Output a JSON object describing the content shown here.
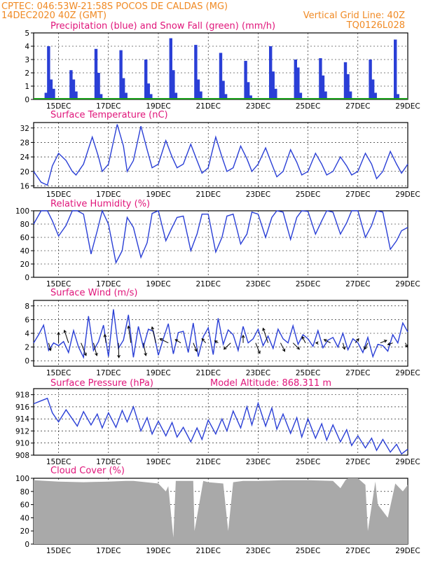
{
  "header": {
    "line1": "CPTEC:   046:53W-21:58S   POCOS DE CALDAS (MG)",
    "line2": "14DEC2020 40Z (GMT)",
    "right1": "Vertical Grid Line: 40Z",
    "right2": "TQ0126L028"
  },
  "x_labels": [
    "15DEC",
    "17DEC",
    "19DEC",
    "21DEC",
    "23DEC",
    "25DEC",
    "27DEC",
    "29DEC"
  ],
  "colors": {
    "header": "#f08a24",
    "title": "#e0157a",
    "line": "#2a3fd6",
    "bar": "#2a3fd6",
    "snow": "#1a9e1a",
    "cloud": "#a9a9a9"
  },
  "chart_data": [
    {
      "type": "bar",
      "title": "Precipitation (blue) and Snow Fall (green) (mm/h)",
      "ylim": [
        0,
        5
      ],
      "yticks": [
        "0",
        "1",
        "2",
        "3",
        "4",
        "5"
      ],
      "x_range_days": [
        14.0,
        29.0
      ],
      "days": [
        14.5,
        14.6,
        14.7,
        14.8,
        15.5,
        15.6,
        15.7,
        16.5,
        16.6,
        16.7,
        17.5,
        17.6,
        17.7,
        18.5,
        18.6,
        18.7,
        19.5,
        19.6,
        19.7,
        20.5,
        20.6,
        20.7,
        21.5,
        21.6,
        21.7,
        22.5,
        22.6,
        22.7,
        23.5,
        23.6,
        23.7,
        24.5,
        24.6,
        24.7,
        25.5,
        25.6,
        25.7,
        26.5,
        26.6,
        26.7,
        27.5,
        27.6,
        27.7,
        28.5,
        28.6
      ],
      "series": [
        {
          "name": "Precipitation",
          "values": [
            0.5,
            4.0,
            1.5,
            0.8,
            2.2,
            1.5,
            0.6,
            3.8,
            2.0,
            0.4,
            3.7,
            1.6,
            0.5,
            3.0,
            1.2,
            0.4,
            4.6,
            2.2,
            0.5,
            4.1,
            1.5,
            0.6,
            3.5,
            1.4,
            0.4,
            2.9,
            1.3,
            0.3,
            4.0,
            2.1,
            0.8,
            3.0,
            2.4,
            0.5,
            3.1,
            1.8,
            0.6,
            2.8,
            1.9,
            0.6,
            3.0,
            1.5,
            0.5,
            4.5,
            0.4
          ]
        }
      ]
    },
    {
      "type": "line",
      "title": "Surface Temperature (nC)",
      "ylim": [
        15.5,
        33.5
      ],
      "yticks": [
        "16",
        "20",
        "24",
        "28",
        "32"
      ],
      "x_range_days": [
        14.0,
        29.0
      ],
      "x": [
        14.0,
        14.3,
        14.55,
        14.75,
        15.0,
        15.3,
        15.55,
        15.7,
        16.0,
        16.35,
        16.6,
        16.75,
        17.0,
        17.35,
        17.6,
        17.75,
        18.0,
        18.3,
        18.55,
        18.75,
        19.0,
        19.3,
        19.55,
        19.75,
        20.0,
        20.3,
        20.55,
        20.75,
        21.0,
        21.3,
        21.55,
        21.75,
        22.0,
        22.3,
        22.55,
        22.75,
        23.0,
        23.3,
        23.55,
        23.75,
        24.0,
        24.3,
        24.55,
        24.75,
        25.0,
        25.3,
        25.55,
        25.75,
        26.0,
        26.3,
        26.55,
        26.75,
        27.0,
        27.3,
        27.55,
        27.75,
        28.0,
        28.3,
        28.55,
        28.75,
        29.0
      ],
      "series": [
        {
          "name": "Temperature",
          "values": [
            20.0,
            17.0,
            16.2,
            21.5,
            25.0,
            23.0,
            20.0,
            19.0,
            22.0,
            29.5,
            24.0,
            20.0,
            22.0,
            33.0,
            27.0,
            20.0,
            23.0,
            32.5,
            26.0,
            21.0,
            22.0,
            28.5,
            24.0,
            21.0,
            22.0,
            27.5,
            23.0,
            19.5,
            21.0,
            29.5,
            24.0,
            20.0,
            21.0,
            27.0,
            23.5,
            20.0,
            22.0,
            26.5,
            22.0,
            18.5,
            20.0,
            26.0,
            22.5,
            19.0,
            20.0,
            25.0,
            22.0,
            19.0,
            20.0,
            24.0,
            21.5,
            19.0,
            20.0,
            25.0,
            22.0,
            18.0,
            20.0,
            25.5,
            22.0,
            19.5,
            22.0
          ]
        }
      ]
    },
    {
      "type": "line",
      "title": "Relative Humidity (%)",
      "ylim": [
        0,
        100
      ],
      "yticks": [
        "0",
        "20",
        "40",
        "60",
        "80",
        "100"
      ],
      "x_range_days": [
        14.0,
        29.0
      ],
      "x": [
        14.0,
        14.3,
        14.55,
        14.75,
        15.0,
        15.3,
        15.55,
        15.75,
        16.0,
        16.3,
        16.55,
        16.75,
        17.0,
        17.3,
        17.55,
        17.75,
        18.0,
        18.3,
        18.55,
        18.75,
        19.0,
        19.3,
        19.55,
        19.75,
        20.0,
        20.3,
        20.55,
        20.75,
        21.0,
        21.3,
        21.55,
        21.75,
        22.0,
        22.3,
        22.55,
        22.75,
        23.0,
        23.3,
        23.55,
        23.75,
        24.0,
        24.3,
        24.55,
        24.75,
        25.0,
        25.3,
        25.55,
        25.75,
        26.0,
        26.3,
        26.55,
        26.75,
        27.0,
        27.3,
        27.55,
        27.75,
        28.0,
        28.3,
        28.55,
        28.75,
        29.0
      ],
      "series": [
        {
          "name": "Relative humidity",
          "values": [
            80.0,
            100.0,
            100.0,
            85.0,
            62.0,
            78.0,
            100.0,
            100.0,
            95.0,
            35.0,
            70.0,
            100.0,
            80.0,
            22.0,
            40.0,
            90.0,
            75.0,
            30.0,
            52.0,
            96.0,
            100.0,
            55.0,
            75.0,
            90.0,
            92.0,
            40.0,
            65.0,
            95.0,
            95.0,
            38.0,
            60.0,
            92.0,
            95.0,
            50.0,
            65.0,
            98.0,
            95.0,
            60.0,
            90.0,
            100.0,
            98.0,
            57.0,
            90.0,
            100.0,
            99.0,
            65.0,
            85.0,
            100.0,
            98.0,
            65.0,
            82.0,
            100.0,
            100.0,
            60.0,
            78.0,
            100.0,
            98.0,
            42.0,
            55.0,
            70.0,
            75.0
          ]
        }
      ]
    },
    {
      "type": "line",
      "title": "Surface Wind (m/s)",
      "ylim": [
        -0.8,
        8.8
      ],
      "yticks": [
        "0",
        "2",
        "4",
        "6",
        "8"
      ],
      "x_range_days": [
        14.0,
        29.0
      ],
      "x": [
        14.0,
        14.2,
        14.4,
        14.6,
        14.8,
        15.0,
        15.2,
        15.4,
        15.6,
        15.8,
        16.0,
        16.2,
        16.4,
        16.6,
        16.8,
        17.0,
        17.2,
        17.4,
        17.6,
        17.8,
        18.0,
        18.2,
        18.4,
        18.6,
        18.8,
        19.0,
        19.2,
        19.4,
        19.6,
        19.8,
        20.0,
        20.2,
        20.4,
        20.6,
        20.8,
        21.0,
        21.2,
        21.4,
        21.6,
        21.8,
        22.0,
        22.2,
        22.4,
        22.6,
        22.8,
        23.0,
        23.2,
        23.4,
        23.6,
        23.8,
        24.0,
        24.2,
        24.4,
        24.6,
        24.8,
        25.0,
        25.2,
        25.4,
        25.6,
        25.8,
        26.0,
        26.2,
        26.4,
        26.6,
        26.8,
        27.0,
        27.2,
        27.4,
        27.6,
        27.8,
        28.0,
        28.2,
        28.4,
        28.6,
        28.8,
        29.0
      ],
      "series": [
        {
          "name": "Wind speed",
          "values": [
            2.6,
            3.8,
            5.2,
            1.5,
            2.6,
            2.2,
            2.8,
            1.2,
            4.4,
            2.0,
            0.5,
            6.5,
            1.5,
            2.8,
            5.2,
            0.6,
            7.5,
            1.8,
            3.0,
            6.7,
            0.5,
            5.0,
            2.0,
            4.6,
            4.3,
            0.8,
            3.2,
            5.4,
            1.0,
            4.1,
            4.3,
            1.2,
            5.5,
            0.6,
            3.5,
            4.8,
            0.9,
            6.2,
            2.4,
            4.5,
            3.8,
            1.5,
            5.0,
            2.6,
            3.2,
            4.6,
            2.2,
            3.6,
            1.8,
            4.6,
            3.2,
            2.6,
            5.1,
            2.4,
            3.8,
            3.2,
            2.1,
            4.4,
            1.9,
            3.0,
            3.4,
            2.0,
            4.0,
            1.6,
            3.2,
            2.6,
            1.2,
            3.4,
            0.6,
            2.4,
            2.2,
            1.4,
            3.8,
            2.6,
            5.5,
            4.2
          ]
        }
      ],
      "arrows": {
        "x": [
          14.6,
          15.0,
          15.4,
          15.9,
          16.4,
          16.9,
          17.4,
          17.9,
          18.4,
          18.9,
          19.4,
          19.9,
          20.4,
          20.9,
          21.4,
          21.9,
          22.4,
          22.9,
          23.4,
          23.9,
          24.4,
          24.9,
          25.4,
          25.9,
          26.4,
          26.9,
          27.4,
          27.9,
          28.4,
          28.9
        ],
        "u": [
          0.5,
          0.0,
          -1.0,
          1.2,
          0.8,
          -0.3,
          0.1,
          -0.6,
          0.6,
          -0.9,
          -2.0,
          -1.3,
          0.8,
          -0.9,
          -0.8,
          -1.6,
          0.0,
          1.0,
          -1.2,
          1.0,
          1.5,
          -0.8,
          -0.5,
          -1.5,
          0.4,
          0.8,
          -0.8,
          1.5,
          -1.2,
          0.5
        ],
        "v": [
          -1.8,
          2.5,
          3.0,
          -3.0,
          -3.0,
          2.0,
          -3.5,
          4.0,
          -3.0,
          3.8,
          1.0,
          0.8,
          -2.0,
          1.0,
          0.5,
          -1.5,
          1.8,
          -2.5,
          3.5,
          -2.0,
          -1.5,
          1.5,
          0.0,
          0.8,
          -1.5,
          1.0,
          -1.5,
          0.6,
          -0.4,
          -1.0
        ]
      }
    },
    {
      "type": "line",
      "title": "Surface Pressure (hPa)",
      "annotation": "Model Altitude: 868.311 m",
      "ylim": [
        908,
        919
      ],
      "yticks": [
        "908",
        "910",
        "912",
        "914",
        "916",
        "918"
      ],
      "x_range_days": [
        14.0,
        29.0
      ],
      "x": [
        14.0,
        14.3,
        14.55,
        14.75,
        15.0,
        15.3,
        15.55,
        15.75,
        16.0,
        16.3,
        16.55,
        16.75,
        17.0,
        17.3,
        17.55,
        17.75,
        18.0,
        18.3,
        18.55,
        18.75,
        19.0,
        19.3,
        19.55,
        19.75,
        20.0,
        20.3,
        20.55,
        20.75,
        21.0,
        21.3,
        21.55,
        21.75,
        22.0,
        22.3,
        22.55,
        22.75,
        23.0,
        23.3,
        23.55,
        23.75,
        24.0,
        24.3,
        24.55,
        24.75,
        25.0,
        25.3,
        25.55,
        25.75,
        26.0,
        26.3,
        26.55,
        26.75,
        27.0,
        27.3,
        27.55,
        27.75,
        28.0,
        28.3,
        28.55,
        28.75,
        29.0
      ],
      "series": [
        {
          "name": "Pressure",
          "values": [
            916.5,
            917.0,
            917.4,
            915.0,
            913.5,
            915.5,
            914.0,
            912.8,
            915.2,
            913.0,
            914.8,
            912.5,
            915.0,
            912.6,
            915.4,
            913.5,
            916.0,
            912.0,
            914.2,
            911.5,
            913.6,
            911.2,
            913.4,
            911.0,
            912.6,
            910.2,
            912.5,
            910.6,
            913.8,
            911.5,
            914.0,
            912.0,
            915.3,
            912.5,
            916.0,
            913.0,
            916.6,
            912.8,
            915.8,
            912.3,
            914.8,
            911.6,
            914.2,
            911.0,
            914.0,
            910.8,
            913.2,
            910.5,
            913.0,
            910.2,
            912.2,
            909.6,
            911.2,
            909.2,
            910.8,
            908.8,
            910.6,
            908.5,
            909.8,
            908.2,
            909.0
          ]
        }
      ]
    },
    {
      "type": "area",
      "title": "Cloud Cover (%)",
      "ylim": [
        0,
        100
      ],
      "yticks": [
        "0",
        "20",
        "40",
        "60",
        "80",
        "100"
      ],
      "x_range_days": [
        14.0,
        29.0
      ],
      "x": [
        14.0,
        15.0,
        16.0,
        17.0,
        17.7,
        18.0,
        19.0,
        19.3,
        19.4,
        19.6,
        19.7,
        20.4,
        20.45,
        20.8,
        21.0,
        21.6,
        21.8,
        22.0,
        22.4,
        23.0,
        24.0,
        25.0,
        26.0,
        26.3,
        26.5,
        26.6,
        27.0,
        27.3,
        27.4,
        27.7,
        27.8,
        28.2,
        28.5,
        28.8,
        29.0
      ],
      "series": [
        {
          "name": "Cloud cover",
          "values": [
            97,
            95,
            94,
            95,
            96,
            96,
            92,
            80,
            88,
            10,
            96,
            96,
            20,
            96,
            94,
            92,
            20,
            94,
            96,
            96,
            97,
            97,
            96,
            85,
            97,
            100,
            100,
            90,
            20,
            95,
            60,
            40,
            92,
            80,
            90
          ]
        }
      ]
    }
  ]
}
